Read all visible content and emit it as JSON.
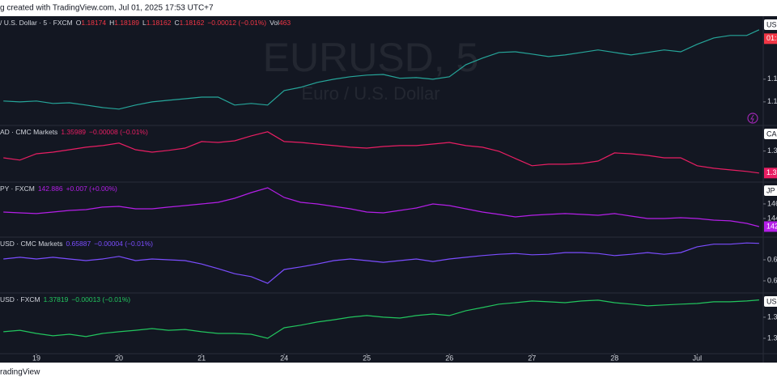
{
  "header": {
    "title": "g created with TradingView.com, Jul 01, 2025 17:53 UTC+7"
  },
  "footer": {
    "brand": "radingView"
  },
  "chart_data": [
    {
      "type": "line",
      "color": "#26a69a",
      "header": [
        {
          "text": "/ U.S. Dollar · 5 · FXCM",
          "color": "#d1d4dc"
        },
        {
          "text": "O",
          "color": "#d1d4dc"
        },
        {
          "text": "1.18174",
          "color": "#f23645"
        },
        {
          "text": "H",
          "color": "#d1d4dc"
        },
        {
          "text": "1.18189",
          "color": "#f23645"
        },
        {
          "text": "L",
          "color": "#d1d4dc"
        },
        {
          "text": "1.18162",
          "color": "#f23645"
        },
        {
          "text": "C",
          "color": "#d1d4dc"
        },
        {
          "text": "1.18162",
          "color": "#f23645"
        },
        {
          "text": "−0.00012 (−0.01%)",
          "color": "#f23645"
        },
        {
          "text": "Vol",
          "color": "#d1d4dc"
        },
        {
          "text": "463",
          "color": "#f23645"
        }
      ],
      "watermark": [
        "EURUSD, 5",
        "Euro / U.S. Dollar"
      ],
      "symbol_tag": "US",
      "price_tag": {
        "text": "01:3",
        "color": "#f23645"
      },
      "x": [
        0.6,
        0.8,
        1.0,
        1.2,
        1.4,
        1.6,
        1.8,
        2.0,
        2.2,
        2.4,
        2.6,
        2.8,
        3.0,
        3.2,
        3.4,
        3.6,
        3.8,
        4.0,
        4.2,
        4.4,
        4.6,
        4.8,
        5.0,
        5.2,
        5.4,
        5.6,
        5.8,
        6.0,
        6.2,
        6.4,
        6.6,
        6.8,
        7.0,
        7.2,
        7.4,
        7.6,
        7.8,
        8.0,
        8.2,
        8.4,
        8.6,
        8.8,
        9.0,
        9.2,
        9.4,
        9.6,
        9.75
      ],
      "values": [
        1.1504,
        1.15,
        1.1504,
        1.1493,
        1.1496,
        1.1486,
        1.1475,
        1.1468,
        1.1486,
        1.15,
        1.1507,
        1.1514,
        1.1521,
        1.1521,
        1.1486,
        1.1493,
        1.1486,
        1.155,
        1.1564,
        1.1586,
        1.16,
        1.1611,
        1.1618,
        1.1621,
        1.1604,
        1.1607,
        1.16,
        1.1611,
        1.1664,
        1.1693,
        1.1718,
        1.1721,
        1.1711,
        1.17,
        1.1707,
        1.1718,
        1.1729,
        1.1718,
        1.1707,
        1.1718,
        1.1729,
        1.1721,
        1.1754,
        1.1782,
        1.1793,
        1.1793,
        1.1818
      ],
      "xlim": [
        0.559,
        9.8
      ],
      "ylim": [
        1.1396,
        1.1878
      ],
      "yticks": [
        {
          "value": 1.16,
          "label": "1.1"
        },
        {
          "value": 1.15,
          "label": "1.1"
        }
      ]
    },
    {
      "type": "line",
      "color": "#e91e63",
      "header": [
        {
          "text": "AD · CMC Markets",
          "color": "#d1d4dc"
        },
        {
          "text": "1.35989",
          "color": "#e91e63"
        },
        {
          "text": "−0.00008 (−0.01%)",
          "color": "#e91e63"
        }
      ],
      "symbol_tag": "CA",
      "price_tag": {
        "text": "1.3",
        "color": "#e91e63"
      },
      "x": [
        0.6,
        0.8,
        1.0,
        1.2,
        1.4,
        1.6,
        1.8,
        2.0,
        2.2,
        2.4,
        2.6,
        2.8,
        3.0,
        3.2,
        3.4,
        3.6,
        3.8,
        4.0,
        4.2,
        4.4,
        4.6,
        4.8,
        5.0,
        5.2,
        5.4,
        5.6,
        5.8,
        6.0,
        6.2,
        6.4,
        6.6,
        6.8,
        7.0,
        7.2,
        7.4,
        7.6,
        7.8,
        8.0,
        8.2,
        8.4,
        8.6,
        8.8,
        9.0,
        9.2,
        9.4,
        9.6,
        9.75
      ],
      "values": [
        1.367,
        1.366,
        1.3688,
        1.3695,
        1.3706,
        1.3717,
        1.3724,
        1.3735,
        1.3706,
        1.3695,
        1.3703,
        1.3713,
        1.3742,
        1.3738,
        1.3745,
        1.3767,
        1.3785,
        1.3742,
        1.3738,
        1.3731,
        1.3724,
        1.3717,
        1.3713,
        1.372,
        1.3724,
        1.3724,
        1.3731,
        1.3738,
        1.3724,
        1.3717,
        1.3699,
        1.3667,
        1.3635,
        1.3642,
        1.3642,
        1.3645,
        1.3656,
        1.3692,
        1.3688,
        1.3681,
        1.367,
        1.367,
        1.3635,
        1.3624,
        1.3617,
        1.361,
        1.3603
      ],
      "xlim": [
        0.559,
        9.8
      ],
      "ylim": [
        1.3563,
        1.3813
      ],
      "yticks": [
        {
          "value": 1.37,
          "label": "1.3"
        }
      ]
    },
    {
      "type": "line",
      "color": "#b41fe8",
      "header": [
        {
          "text": "PY · FXCM",
          "color": "#d1d4dc"
        },
        {
          "text": "142.886",
          "color": "#b41fe8"
        },
        {
          "text": "+0.007 (+0.00%)",
          "color": "#b41fe8"
        }
      ],
      "symbol_tag": "JP",
      "price_tag": {
        "text": "142",
        "color": "#b41fe8"
      },
      "x": [
        0.6,
        0.8,
        1.0,
        1.2,
        1.4,
        1.6,
        1.8,
        2.0,
        2.2,
        2.4,
        2.6,
        2.8,
        3.0,
        3.2,
        3.4,
        3.6,
        3.8,
        4.0,
        4.2,
        4.4,
        4.6,
        4.8,
        5.0,
        5.2,
        5.4,
        5.6,
        5.8,
        6.0,
        6.2,
        6.4,
        6.6,
        6.8,
        7.0,
        7.2,
        7.4,
        7.6,
        7.8,
        8.0,
        8.2,
        8.4,
        8.6,
        8.8,
        9.0,
        9.2,
        9.4,
        9.6,
        9.75
      ],
      "values": [
        144.89,
        144.78,
        144.67,
        144.89,
        145.11,
        145.22,
        145.56,
        145.67,
        145.33,
        145.33,
        145.56,
        145.78,
        146.0,
        146.22,
        146.78,
        147.56,
        148.22,
        146.89,
        146.22,
        146.0,
        145.67,
        145.33,
        144.89,
        144.78,
        145.11,
        145.44,
        146.0,
        145.78,
        145.33,
        144.89,
        144.56,
        144.22,
        144.44,
        144.56,
        144.67,
        144.56,
        144.44,
        144.67,
        144.33,
        144.0,
        144.0,
        144.11,
        144.0,
        143.78,
        143.67,
        143.33,
        142.89
      ],
      "xlim": [
        0.559,
        9.8
      ],
      "ylim": [
        141.44,
        149.0
      ],
      "yticks": [
        146,
        144
      ]
    },
    {
      "type": "line",
      "color": "#7b4dff",
      "header": [
        {
          "text": "USD · CMC Markets",
          "color": "#d1d4dc"
        },
        {
          "text": "0.65887",
          "color": "#7b4dff"
        },
        {
          "text": "−0.00004 (−0.01%)",
          "color": "#7b4dff"
        }
      ],
      "x": [
        0.6,
        0.8,
        1.0,
        1.2,
        1.4,
        1.6,
        1.8,
        2.0,
        2.2,
        2.4,
        2.6,
        2.8,
        3.0,
        3.2,
        3.4,
        3.6,
        3.8,
        4.0,
        4.2,
        4.4,
        4.6,
        4.8,
        5.0,
        5.2,
        5.4,
        5.6,
        5.8,
        6.0,
        6.2,
        6.4,
        6.6,
        6.8,
        7.0,
        7.2,
        7.4,
        7.6,
        7.8,
        8.0,
        8.2,
        8.4,
        8.6,
        8.8,
        9.0,
        9.2,
        9.4,
        9.6,
        9.75
      ],
      "values": [
        0.6552,
        0.6556,
        0.6552,
        0.6556,
        0.6552,
        0.6548,
        0.6552,
        0.6558,
        0.6548,
        0.6552,
        0.655,
        0.6548,
        0.654,
        0.6529,
        0.6517,
        0.651,
        0.6494,
        0.6527,
        0.6533,
        0.654,
        0.6548,
        0.6552,
        0.6548,
        0.6544,
        0.6548,
        0.6552,
        0.6546,
        0.6552,
        0.6556,
        0.656,
        0.6563,
        0.6565,
        0.6562,
        0.6563,
        0.6567,
        0.6567,
        0.6565,
        0.656,
        0.6563,
        0.6567,
        0.6563,
        0.6567,
        0.6581,
        0.6587,
        0.6587,
        0.659,
        0.6589
      ],
      "xlim": [
        0.559,
        9.8
      ],
      "ylim": [
        0.64712,
        0.66038
      ],
      "yticks": [
        {
          "value": 0.655,
          "label": "0.6"
        },
        {
          "value": 0.65,
          "label": "0.6"
        }
      ]
    },
    {
      "type": "line",
      "color": "#22c55e",
      "header": [
        {
          "text": "USD · FXCM",
          "color": "#d1d4dc"
        },
        {
          "text": "1.37819",
          "color": "#22c55e"
        },
        {
          "text": "−0.00013 (−0.01%)",
          "color": "#22c55e"
        }
      ],
      "symbol_tag": "US",
      "x": [
        0.6,
        0.8,
        1.0,
        1.2,
        1.4,
        1.6,
        1.8,
        2.0,
        2.2,
        2.4,
        2.6,
        2.8,
        3.0,
        3.2,
        3.4,
        3.6,
        3.8,
        4.0,
        4.2,
        4.4,
        4.6,
        4.8,
        5.0,
        5.2,
        5.4,
        5.6,
        5.8,
        6.0,
        6.2,
        6.4,
        6.6,
        6.8,
        7.0,
        7.2,
        7.4,
        7.6,
        7.8,
        8.0,
        8.2,
        8.4,
        8.6,
        8.8,
        9.0,
        9.2,
        9.4,
        9.6,
        9.75
      ],
      "values": [
        1.3631,
        1.3638,
        1.3623,
        1.3612,
        1.3619,
        1.3608,
        1.3623,
        1.3631,
        1.3638,
        1.3646,
        1.3638,
        1.3642,
        1.3631,
        1.3623,
        1.3623,
        1.3619,
        1.36,
        1.365,
        1.3662,
        1.3677,
        1.3688,
        1.37,
        1.3708,
        1.37,
        1.3696,
        1.3708,
        1.3715,
        1.3708,
        1.3731,
        1.3746,
        1.3762,
        1.3769,
        1.3777,
        1.3773,
        1.3769,
        1.3777,
        1.3781,
        1.3769,
        1.3762,
        1.3754,
        1.3758,
        1.3762,
        1.3765,
        1.3773,
        1.3773,
        1.3777,
        1.3782
      ],
      "xlim": [
        0.559,
        9.8
      ],
      "ylim": [
        1.3527,
        1.3815
      ],
      "yticks": [
        {
          "value": 1.37,
          "label": "1.3"
        },
        {
          "value": 1.36,
          "label": "1.3"
        }
      ],
      "xticks": [
        {
          "value": 1,
          "label": "19"
        },
        {
          "value": 2,
          "label": "20"
        },
        {
          "value": 3,
          "label": "21"
        },
        {
          "value": 4,
          "label": "24"
        },
        {
          "value": 5,
          "label": "25"
        },
        {
          "value": 6,
          "label": "26"
        },
        {
          "value": 7,
          "label": "27"
        },
        {
          "value": 8,
          "label": "28"
        },
        {
          "value": 9,
          "label": "Jul"
        }
      ]
    }
  ]
}
